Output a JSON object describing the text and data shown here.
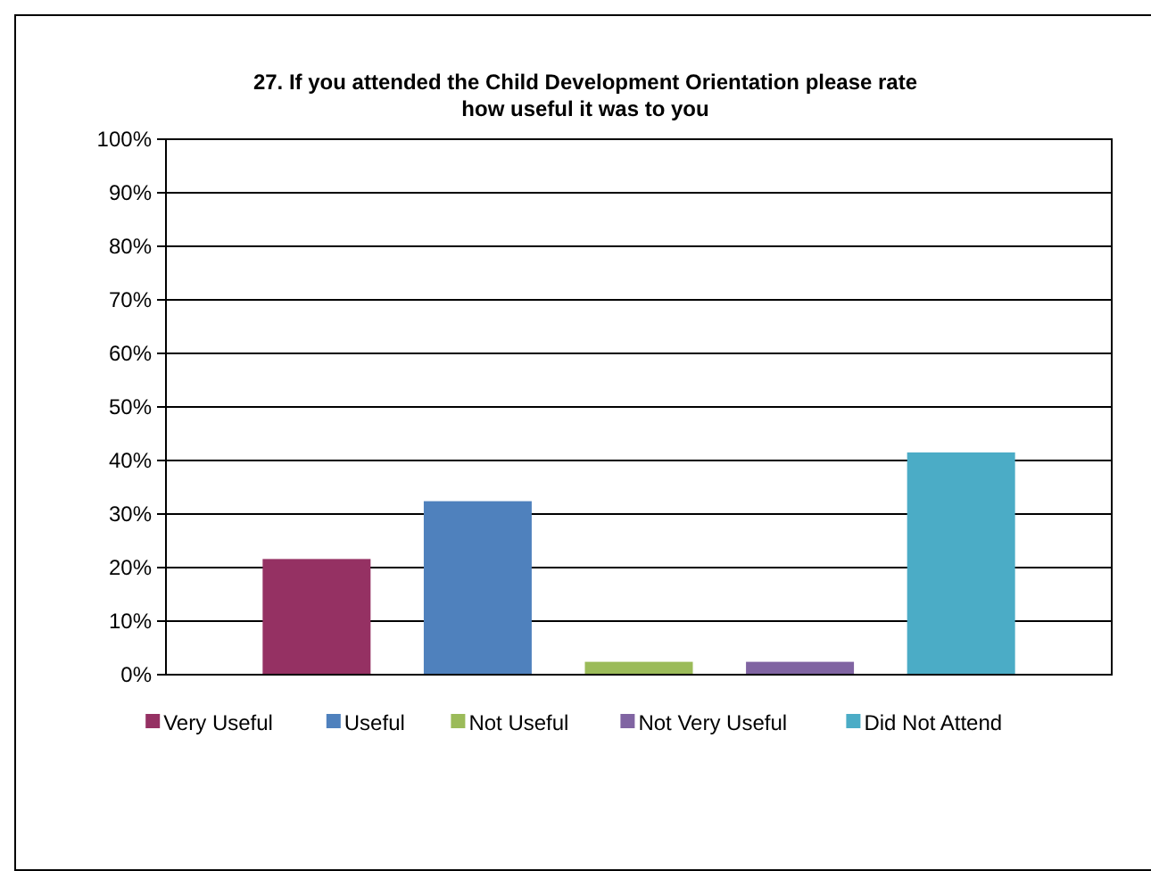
{
  "chart_data": {
    "type": "bar",
    "title": "27. If you attended the Child Development Orientation please rate how useful it was to you",
    "categories": [
      null,
      null,
      null,
      null,
      null
    ],
    "series": [
      {
        "name": "Very Useful",
        "color": "#953163",
        "values": [
          21.6,
          null,
          null,
          null,
          null
        ]
      },
      {
        "name": "Useful",
        "color": "#4f81bd",
        "values": [
          null,
          32.4,
          null,
          null,
          null
        ]
      },
      {
        "name": "Not Useful",
        "color": "#9bbb59",
        "values": [
          null,
          null,
          2.4,
          null,
          null
        ]
      },
      {
        "name": "Not Very Useful",
        "color": "#8064a2",
        "values": [
          null,
          null,
          null,
          2.4,
          null
        ]
      },
      {
        "name": "Did Not Attend",
        "color": "#4bacc6",
        "values": [
          null,
          null,
          null,
          null,
          41.5
        ]
      }
    ],
    "ylim": [
      0,
      100
    ],
    "yticks": [
      {
        "value": 0,
        "label": "0%"
      },
      {
        "value": 10,
        "label": "10%"
      },
      {
        "value": 20,
        "label": "20%"
      },
      {
        "value": 30,
        "label": "30%"
      },
      {
        "value": 40,
        "label": "40%"
      },
      {
        "value": 50,
        "label": "50%"
      },
      {
        "value": 60,
        "label": "60%"
      },
      {
        "value": 70,
        "label": "70%"
      },
      {
        "value": 80,
        "label": "80%"
      },
      {
        "value": 90,
        "label": "90%"
      },
      {
        "value": 100,
        "label": "100%"
      }
    ],
    "grid": "y",
    "legend": "bottom",
    "tick_labels": "y"
  }
}
